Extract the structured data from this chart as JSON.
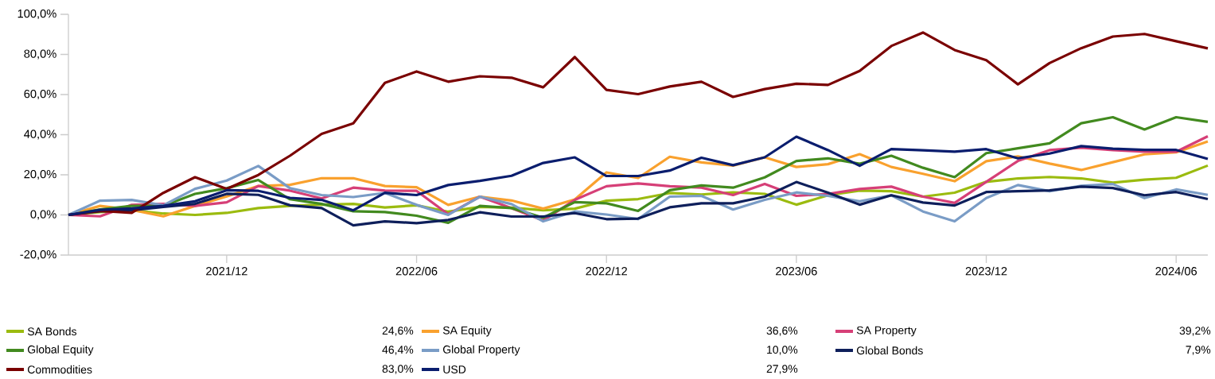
{
  "chart_data": {
    "type": "line",
    "categories": [
      null,
      null,
      null,
      null,
      null,
      "2021/12",
      null,
      null,
      null,
      null,
      null,
      "2022/06",
      null,
      null,
      null,
      null,
      null,
      "2022/12",
      null,
      null,
      null,
      null,
      null,
      "2023/06",
      null,
      null,
      null,
      null,
      null,
      "2023/12",
      null,
      null,
      null,
      null,
      null,
      "2024/06",
      null
    ],
    "ylim": [
      -20,
      100
    ],
    "yticks": [
      {
        "value": -20,
        "label": "-20,0%"
      },
      {
        "value": 0,
        "label": "0,0%"
      },
      {
        "value": 20,
        "label": "20,0%"
      },
      {
        "value": 40,
        "label": "40,0%"
      },
      {
        "value": 60,
        "label": "60,0%"
      },
      {
        "value": 80,
        "label": "80,0%"
      },
      {
        "value": 100,
        "label": "100,0%"
      }
    ],
    "grid": false,
    "legend": "bottom",
    "marker": "none",
    "line_style": "solid",
    "series": [
      {
        "name": "SA Bonds",
        "color": "#9bbb0f",
        "values": [
          0,
          1.4,
          2.3,
          0.7,
          0,
          1.0,
          3.4,
          4.5,
          5.1,
          5.5,
          3.7,
          4.8,
          1.6,
          4.0,
          3.6,
          2.3,
          3.1,
          7.1,
          7.9,
          10.9,
          10.2,
          11.2,
          10.5,
          5.1,
          9.8,
          12.1,
          11.8,
          9.1,
          11.1,
          16.5,
          18.2,
          18.9,
          18.2,
          16.1,
          17.6,
          18.5,
          24.6
        ]
      },
      {
        "name": "SA Equity",
        "color": "#f9a12e",
        "values": [
          0,
          4.5,
          2.5,
          -0.7,
          4.5,
          9.2,
          14.4,
          15.0,
          18.3,
          18.3,
          14.4,
          13.8,
          5.0,
          9.1,
          7.2,
          3.1,
          7.7,
          21.2,
          18.4,
          29.0,
          26.2,
          24.6,
          28.7,
          23.9,
          25.3,
          30.3,
          23.9,
          20.5,
          16.8,
          26.8,
          29.2,
          25.6,
          22.4,
          26.3,
          30.2,
          31.2,
          36.6
        ]
      },
      {
        "name": "SA Property",
        "color": "#d63f77",
        "values": [
          0,
          -0.7,
          5.0,
          5.5,
          4.5,
          6.3,
          14.4,
          12.1,
          8.2,
          13.6,
          12.1,
          12.0,
          0.3,
          9.1,
          3.4,
          -2.8,
          7.5,
          14.3,
          15.7,
          14.3,
          13.6,
          9.9,
          15.4,
          9.5,
          10.5,
          12.9,
          14.1,
          9.1,
          6.0,
          16.5,
          26.9,
          32.3,
          33.5,
          32.3,
          31.5,
          31.5,
          39.2
        ]
      },
      {
        "name": "Global Equity",
        "color": "#428a1f",
        "values": [
          0,
          2.7,
          4.5,
          4.5,
          10.5,
          13.3,
          17.4,
          7.8,
          5.5,
          1.8,
          1.4,
          -0.4,
          -3.9,
          4.5,
          3.4,
          -1.4,
          6.4,
          5.8,
          2.0,
          12.3,
          14.7,
          13.6,
          18.7,
          26.9,
          28.2,
          25.5,
          29.5,
          23.5,
          18.8,
          30.8,
          33.2,
          35.7,
          45.7,
          48.7,
          42.6,
          48.7,
          46.4
        ]
      },
      {
        "name": "Global Property",
        "color": "#7a9cc6",
        "values": [
          0,
          7.1,
          7.5,
          4.8,
          13.0,
          17.1,
          24.4,
          13.3,
          9.9,
          8.9,
          11.0,
          5.0,
          0,
          9.1,
          5.4,
          -3.2,
          1.7,
          0.2,
          -2.1,
          9.1,
          9.5,
          2.7,
          7.5,
          11.2,
          9.5,
          6.8,
          9.8,
          1.7,
          -3.2,
          8.4,
          14.9,
          11.8,
          14.5,
          15.4,
          8.4,
          12.7,
          10.0
        ]
      },
      {
        "name": "Global Bonds",
        "color": "#0e1f5b",
        "values": [
          0,
          1.8,
          2.3,
          4.0,
          5.5,
          10.5,
          10.0,
          4.8,
          3.4,
          -5.2,
          -3.2,
          -4.1,
          -2.5,
          1.3,
          -0.8,
          -0.8,
          0.9,
          -2.1,
          -1.8,
          3.8,
          5.8,
          5.8,
          9.1,
          16.4,
          11.1,
          5.1,
          9.8,
          6.2,
          4.7,
          11.4,
          11.8,
          12.2,
          14.1,
          13.4,
          9.8,
          11.4,
          7.9
        ]
      },
      {
        "name": "Commodities",
        "color": "#7a0000",
        "values": [
          0,
          2.0,
          1.0,
          11.0,
          18.8,
          13.0,
          19.9,
          29.5,
          40.4,
          45.6,
          65.8,
          71.5,
          66.4,
          69.1,
          68.4,
          63.6,
          78.7,
          62.3,
          60.2,
          64.0,
          66.4,
          58.8,
          62.7,
          65.4,
          64.8,
          71.8,
          84.2,
          90.9,
          82.2,
          77.1,
          65.1,
          75.7,
          83.1,
          88.9,
          90.2,
          86.6,
          83.0
        ]
      },
      {
        "name": "USD",
        "color": "#0a1d6e",
        "values": [
          0,
          2.5,
          3.2,
          4.5,
          6.8,
          12.3,
          12.0,
          8.5,
          7.5,
          2.3,
          11.0,
          9.9,
          14.9,
          17.0,
          19.5,
          25.9,
          28.7,
          19.4,
          19.4,
          22.1,
          28.5,
          24.8,
          28.7,
          39.0,
          32.3,
          24.5,
          32.8,
          32.2,
          31.5,
          32.8,
          28.2,
          30.6,
          34.3,
          33.0,
          32.4,
          32.4,
          27.9
        ]
      }
    ],
    "annotations": [
      "24,6%",
      "36,6%",
      "39,2%",
      "46,4%",
      "10,0%",
      "7,9%",
      "83,0%",
      "27,9%"
    ]
  }
}
